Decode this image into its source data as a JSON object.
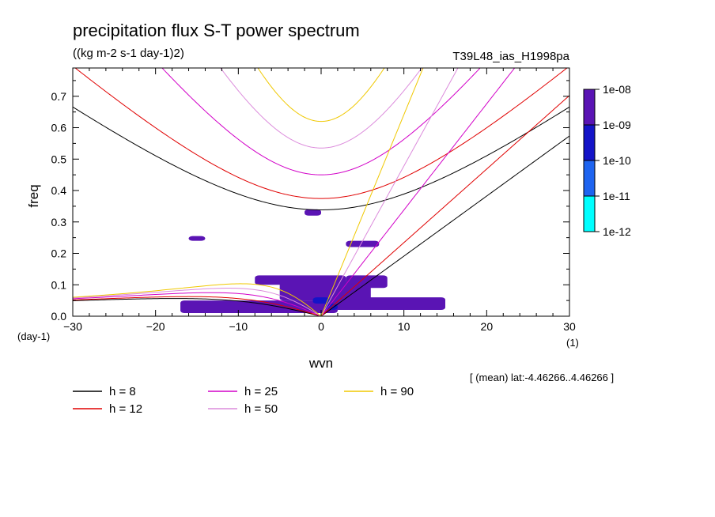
{
  "chart_data": {
    "type": "line",
    "title": "precipitation flux S-T power spectrum",
    "subtitle": "((kg m-2 s-1 day-1)2)",
    "run_label": "T39L48_ias_H1998pa",
    "xlabel": "wvn",
    "ylabel": "freq",
    "x_unit": "(1)",
    "y_unit": "(day-1)",
    "xlim": [
      -30,
      30
    ],
    "ylim": [
      0,
      0.79
    ],
    "xticks": [
      -30,
      -20,
      -10,
      0,
      10,
      20,
      30
    ],
    "yticks": [
      0.0,
      0.1,
      0.2,
      0.3,
      0.4,
      0.5,
      0.6,
      0.7
    ],
    "annotation": "[ (mean) lat:-4.46266..4.46266 ]",
    "colorbar": {
      "labels": [
        "1e-08",
        "1e-09",
        "1e-10",
        "1e-11",
        "1e-12"
      ],
      "colors": [
        "#5a14b4",
        "#1414c8",
        "#1e64f0",
        "#00ffff"
      ]
    },
    "series": [
      {
        "name": "h =  8",
        "h": 8,
        "color": "#000000"
      },
      {
        "name": "h = 12",
        "h": 12,
        "color": "#e00000"
      },
      {
        "name": "h = 25",
        "h": 25,
        "color": "#d200c8"
      },
      {
        "name": "h = 50",
        "h": 50,
        "color": "#dc8cdc"
      },
      {
        "name": "h = 90",
        "h": 90,
        "color": "#f0c800"
      }
    ],
    "dispersion_families": [
      "inertia-gravity (n=1)",
      "kelvin",
      "equatorial rossby (n=1)"
    ],
    "spectrum_patches": [
      {
        "level": "1e-12",
        "x": [
          -17,
          2
        ],
        "y": [
          0.01,
          0.05
        ]
      },
      {
        "level": "1e-12",
        "x": [
          -5,
          6
        ],
        "y": [
          0.05,
          0.11
        ]
      },
      {
        "level": "1e-12",
        "x": [
          -8,
          3
        ],
        "y": [
          0.1,
          0.13
        ]
      },
      {
        "level": "1e-12",
        "x": [
          1,
          15
        ],
        "y": [
          0.02,
          0.06
        ]
      },
      {
        "level": "1e-12",
        "x": [
          3,
          8
        ],
        "y": [
          0.09,
          0.13
        ]
      },
      {
        "level": "1e-12",
        "x": [
          3,
          7
        ],
        "y": [
          0.22,
          0.24
        ]
      },
      {
        "level": "1e-12",
        "x": [
          -16,
          -14
        ],
        "y": [
          0.24,
          0.255
        ]
      },
      {
        "level": "1e-12",
        "x": [
          -2,
          0
        ],
        "y": [
          0.32,
          0.34
        ]
      },
      {
        "level": "1e-11",
        "x": [
          -1,
          1
        ],
        "y": [
          0.04,
          0.06
        ]
      },
      {
        "level": "1e-11",
        "x": [
          0.5,
          2
        ],
        "y": [
          0.02,
          0.04
        ]
      }
    ]
  }
}
